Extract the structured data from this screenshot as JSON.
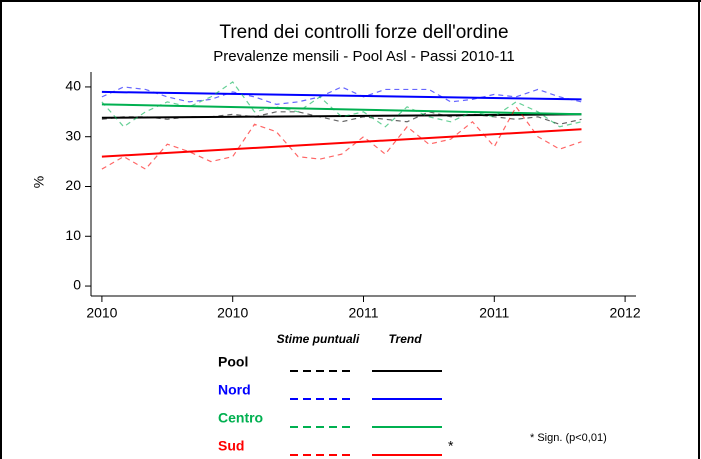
{
  "chart_data": {
    "type": "line",
    "title": "Trend dei controlli forze dell'ordine",
    "subtitle": "Prevalenze mensili - Pool Asl - Passi 2010-11",
    "y_label": "%",
    "x": [
      0,
      1,
      2,
      3,
      4,
      5,
      6,
      7,
      8,
      9,
      10,
      11,
      12,
      13,
      14,
      15,
      16,
      17,
      18,
      19,
      20,
      21,
      22
    ],
    "trend_x": [
      0,
      22
    ],
    "xlim": [
      -0.5,
      24.5
    ],
    "xticks": [
      {
        "value": 0,
        "label": "2010"
      },
      {
        "value": 6,
        "label": "2010"
      },
      {
        "value": 12,
        "label": "2011"
      },
      {
        "value": 18,
        "label": "2011"
      },
      {
        "value": 24,
        "label": "2012"
      }
    ],
    "ylim": [
      -2,
      43
    ],
    "yticks": [
      0,
      10,
      20,
      30,
      40
    ],
    "legend_headers": [
      "Stime puntuali",
      "Trend"
    ],
    "series": [
      {
        "name": "Pool",
        "color": "#000000",
        "values": [
          33.5,
          34,
          34,
          33.5,
          34,
          34,
          34.5,
          34,
          35,
          35,
          34,
          33,
          34,
          33.5,
          33,
          35,
          34,
          34.5,
          34,
          33.5,
          34,
          32.5,
          33.5
        ],
        "trend": [
          33.8,
          34.5
        ]
      },
      {
        "name": "Nord",
        "color": "#0000ff",
        "values": [
          38,
          40,
          39.5,
          38,
          37,
          37.5,
          39,
          38,
          36.5,
          37,
          38,
          40,
          38,
          39.5,
          39.5,
          39.5,
          37,
          37.5,
          38.5,
          38,
          39.5,
          38,
          37
        ],
        "trend": [
          39,
          37.5
        ]
      },
      {
        "name": "Centro",
        "color": "#00b050",
        "values": [
          37,
          32,
          35,
          37,
          36,
          38,
          41,
          35,
          36,
          35,
          38,
          34,
          35,
          32,
          36,
          34,
          33,
          35,
          34,
          37,
          35,
          32,
          33
        ],
        "trend": [
          36.5,
          34.5
        ]
      },
      {
        "name": "Sud",
        "color": "#ff0000",
        "values": [
          23.5,
          26,
          23.5,
          28.5,
          27,
          25,
          26,
          32.5,
          31,
          26,
          25.5,
          26.5,
          30,
          26.5,
          32,
          28.5,
          29.5,
          33,
          28,
          36,
          30,
          27.5,
          29
        ],
        "trend": [
          26,
          31.5
        ],
        "mark": "*"
      }
    ],
    "note": "* Sign. (p<0,01)"
  }
}
